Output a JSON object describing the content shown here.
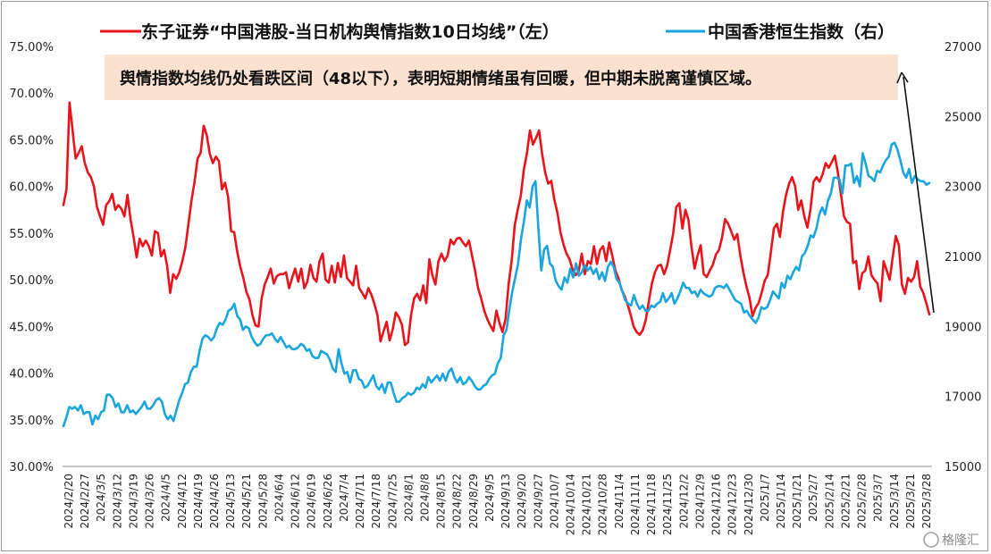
{
  "chart_data": {
    "type": "line",
    "legend": {
      "placement": "top",
      "items": [
        {
          "label": "东子证券“中国港股-当日机构舆情指数10日均线”（左）",
          "color": "#e8141c"
        },
        {
          "label": "中国香港恒生指数（右）",
          "color": "#1aa5dc"
        }
      ]
    },
    "annotation": "舆情指数均线仍处看跌区间（48以下），表明短期情绪虽有回暖，但中期未脱离谨慎区域。",
    "annotation_bg": "#fbe1cf",
    "left_axis": {
      "ticks": [
        "30.00%",
        "35.00%",
        "40.00%",
        "45.00%",
        "50.00%",
        "55.00%",
        "60.00%",
        "65.00%",
        "70.00%",
        "75.00%"
      ],
      "range": [
        30,
        75
      ]
    },
    "right_axis": {
      "ticks": [
        "15000",
        "17000",
        "19000",
        "21000",
        "23000",
        "25000",
        "27000"
      ],
      "range": [
        15000,
        27000
      ]
    },
    "x_tick_labels": [
      "2024/2/20",
      "2024/2/27",
      "2024/3/5",
      "2024/3/12",
      "2024/3/19",
      "2024/3/26",
      "2024/4/5",
      "2024/4/12",
      "2024/4/19",
      "2024/4/26",
      "2024/5/13",
      "2024/5/21",
      "2024/5/28",
      "2024/6/4",
      "2024/6/12",
      "2024/6/19",
      "2024/6/26",
      "2024/7/4",
      "2024/7/11",
      "2024/7/18",
      "2024/7/25",
      "2024/8/1",
      "2024/8/8",
      "2024/8/15",
      "2024/8/22",
      "2024/8/29",
      "2024/9/5",
      "2024/9/13",
      "2024/9/20",
      "2024/9/27",
      "2024/10/7",
      "2024/10/14",
      "2024/10/21",
      "2024/10/28",
      "2024/11/4",
      "2024/11/11",
      "2024/11/18",
      "2024/11/25",
      "2024/12/2",
      "2024/12/9",
      "2024/12/16",
      "2024/12/23",
      "2024/12/30",
      "2025/1/7",
      "2025/1/14",
      "2025/1/21",
      "2025/2/7",
      "2025/2/14",
      "2025/2/21",
      "2025/2/28",
      "2025/3/7",
      "2025/3/14",
      "2025/3/21",
      "2025/3/28"
    ],
    "series": [
      {
        "name": "东子证券“中国港股-当日机构舆情指数10日均线”（左）",
        "axis": "left",
        "color": "#e8141c",
        "values": [
          58.0,
          59.7,
          69.0,
          66.0,
          63.0,
          63.6,
          64.3,
          62.5,
          61.5,
          61.0,
          60.0,
          57.8,
          56.8,
          55.9,
          58.0,
          58.4,
          59.2,
          57.5,
          58.0,
          57.6,
          56.8,
          59.1,
          56.5,
          54.6,
          52.4,
          54.4,
          53.6,
          54.2,
          53.6,
          52.6,
          55.2,
          55.0,
          52.5,
          53.2,
          51.5,
          48.6,
          50.6,
          50.1,
          50.8,
          52.0,
          53.5,
          56.0,
          58.5,
          60.5,
          63.0,
          63.6,
          66.5,
          65.5,
          63.5,
          62.5,
          63.2,
          62.7,
          59.7,
          60.4,
          58.9,
          55.2,
          55.1,
          53.0,
          51.4,
          50.2,
          48.7,
          47.9,
          46.2,
          45.1,
          45.0,
          48.0,
          49.5,
          50.3,
          51.2,
          49.6,
          50.4,
          50.6,
          50.6,
          50.8,
          49.1,
          50.2,
          51.2,
          49.8,
          51.2,
          49.1,
          49.8,
          51.6,
          50.2,
          49.8,
          52.0,
          52.8,
          50.0,
          49.7,
          51.5,
          49.7,
          51.8,
          50.3,
          52.6,
          50.2,
          49.8,
          49.4,
          51.5,
          49.1,
          48.6,
          48.0,
          49.1,
          48.4,
          47.4,
          46.2,
          43.4,
          44.5,
          45.5,
          43.5,
          44.7,
          46.5,
          46.0,
          45.2,
          43.0,
          43.3,
          46.2,
          48.0,
          48.5,
          47.8,
          49.4,
          47.5,
          52.2,
          50.5,
          49.5,
          52.0,
          52.8,
          52.0,
          52.6,
          54.3,
          53.8,
          54.4,
          54.5,
          54.0,
          53.6,
          54.2,
          52.6,
          51.0,
          49.1,
          48.0,
          46.7,
          45.8,
          45.1,
          44.5,
          46.7,
          45.4,
          44.4,
          45.8,
          49.5,
          52.0,
          55.8,
          57.5,
          59.0,
          61.8,
          63.5,
          66.0,
          64.5,
          65.2,
          66.0,
          63.5,
          61.5,
          60.3,
          60.6,
          58.6,
          57.2,
          55.1,
          53.8,
          52.8,
          52.2,
          51.1,
          50.5,
          50.9,
          52.8,
          50.6,
          52.0,
          51.7,
          53.6,
          51.7,
          53.2,
          53.6,
          52.0,
          54.0,
          52.6,
          51.0,
          50.2,
          49.0,
          48.3,
          47.4,
          46.3,
          45.0,
          44.4,
          44.1,
          44.6,
          45.7,
          47.7,
          49.6,
          50.8,
          51.5,
          51.6,
          50.6,
          51.5,
          53.2,
          55.0,
          57.8,
          58.2,
          55.5,
          57.5,
          56.4,
          53.5,
          51.2,
          52.6,
          53.7,
          50.6,
          50.3,
          51.0,
          51.6,
          52.7,
          53.2,
          54.5,
          56.5,
          56.0,
          55.2,
          54.3,
          54.9,
          52.6,
          50.8,
          49.3,
          48.1,
          46.1,
          47.0,
          47.5,
          48.6,
          49.9,
          50.5,
          52.9,
          55.5,
          56.0,
          54.6,
          57.3,
          59.1,
          60.3,
          61.0,
          60.0,
          57.5,
          58.5,
          56.8,
          55.6,
          57.5,
          60.5,
          61.0,
          60.5,
          61.3,
          62.5,
          62.0,
          62.6,
          63.3,
          61.5,
          59.2,
          56.8,
          56.2,
          56.0,
          51.8,
          52.0,
          49.0,
          50.7,
          51.0,
          52.5,
          50.5,
          50.0,
          49.6,
          47.7,
          52.0,
          51.0,
          50.0,
          52.5,
          54.7,
          53.7,
          49.5,
          48.5,
          50.2,
          49.8,
          50.3,
          52.0,
          49.3,
          48.6,
          47.5,
          46.3
        ]
      },
      {
        "name": "中国香港恒生指数（右）",
        "axis": "right",
        "color": "#1aa5dc",
        "values": [
          16150,
          16400,
          16700,
          16650,
          16700,
          16600,
          16750,
          16500,
          16550,
          16550,
          16200,
          16450,
          16350,
          16550,
          16600,
          17050,
          17050,
          16950,
          16700,
          16800,
          16550,
          16550,
          16750,
          16550,
          16600,
          16500,
          16600,
          16700,
          16850,
          16650,
          16650,
          16750,
          16900,
          16950,
          16850,
          16500,
          16350,
          16450,
          16300,
          16600,
          16900,
          17100,
          17350,
          17400,
          17700,
          17850,
          17850,
          18300,
          18650,
          18750,
          18700,
          18600,
          18700,
          18950,
          19100,
          19050,
          19200,
          19450,
          19500,
          19650,
          19300,
          19200,
          18900,
          19000,
          18950,
          18700,
          18550,
          18450,
          18500,
          18650,
          18750,
          18750,
          18800,
          18650,
          18550,
          18700,
          18550,
          18400,
          18450,
          18350,
          18350,
          18400,
          18500,
          18450,
          18300,
          18350,
          18150,
          18100,
          18100,
          18300,
          18250,
          18200,
          18050,
          17800,
          17700,
          18350,
          17950,
          17650,
          17700,
          17400,
          17750,
          17750,
          17500,
          17450,
          17250,
          17300,
          17450,
          17600,
          17300,
          17200,
          17350,
          17100,
          17400,
          17400,
          17100,
          16850,
          16850,
          16950,
          17000,
          17100,
          17050,
          17100,
          17250,
          17200,
          17350,
          17250,
          17550,
          17400,
          17500,
          17600,
          17450,
          17650,
          17450,
          17700,
          17800,
          17550,
          17400,
          17550,
          17350,
          17400,
          17550,
          17450,
          17300,
          17200,
          17200,
          17300,
          17350,
          17500,
          17600,
          17650,
          17950,
          18100,
          18750,
          18900,
          19500,
          20000,
          20400,
          20800,
          21500,
          22000,
          22600,
          22400,
          23000,
          23150,
          21800,
          20600,
          21200,
          21300,
          20800,
          20700,
          20300,
          20150,
          20050,
          20400,
          20250,
          20650,
          20400,
          20800,
          20450,
          20550,
          20750,
          20600,
          20700,
          20500,
          20650,
          20350,
          20550,
          20300,
          20700,
          20850,
          20700,
          20350,
          20250,
          20000,
          19750,
          19650,
          19600,
          19900,
          19650,
          19500,
          19600,
          19450,
          19450,
          19600,
          19550,
          19650,
          19700,
          19950,
          19700,
          19800,
          19950,
          19650,
          19800,
          20000,
          20250,
          20100,
          20100,
          19950,
          20000,
          19850,
          20050,
          19950,
          19900,
          19850,
          19900,
          20100,
          20150,
          20150,
          20100,
          20200,
          20050,
          19900,
          19750,
          19700,
          19650,
          19400,
          19450,
          19300,
          19200,
          19100,
          19250,
          19550,
          19500,
          19550,
          19750,
          20000,
          19900,
          19800,
          20250,
          20100,
          20450,
          20350,
          20550,
          20700,
          20600,
          21000,
          21100,
          21300,
          21600,
          21550,
          21800,
          22200,
          22400,
          22200,
          22600,
          22800,
          23250,
          23250,
          23200,
          22800,
          23600,
          23600,
          23650,
          23100,
          23300,
          23000,
          23950,
          23650,
          23300,
          23250,
          23150,
          23450,
          23400,
          23600,
          23750,
          23850,
          24200,
          24250,
          24050,
          23750,
          23400,
          23250,
          23500,
          23100,
          23300,
          23200,
          23150,
          23150,
          23050,
          23100
        ]
      }
    ],
    "grid": false
  },
  "watermark": "格隆汇"
}
